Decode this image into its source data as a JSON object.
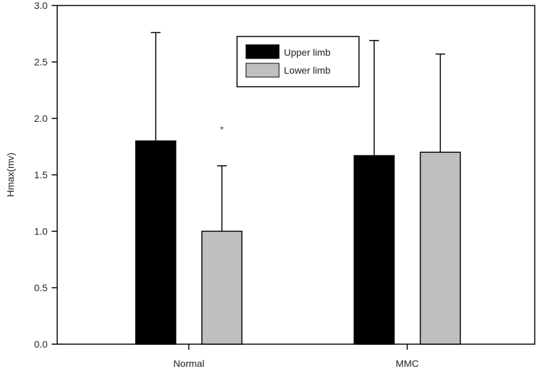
{
  "chart_data": {
    "type": "bar",
    "title": "",
    "xlabel": "",
    "ylabel": "Hmax(mv)",
    "ylim": [
      0,
      3.0
    ],
    "yticks": [
      "0.0",
      "0.5",
      "1.0",
      "1.5",
      "2.0",
      "2.5",
      "3.0"
    ],
    "categories": [
      "Normal",
      "MMC"
    ],
    "series": [
      {
        "name": "Upper limb",
        "color": "#000000",
        "values": [
          1.8,
          1.67
        ],
        "error": [
          0.96,
          1.02
        ]
      },
      {
        "name": "Lower limb",
        "color": "#bfbfbf",
        "values": [
          1.0,
          1.7
        ],
        "error": [
          0.58,
          0.87
        ]
      }
    ],
    "annotations": [
      {
        "text": "*",
        "category": "Normal",
        "series": "Lower limb",
        "y": 1.91
      }
    ],
    "legend": {
      "position": "top-center"
    },
    "grid": false
  }
}
